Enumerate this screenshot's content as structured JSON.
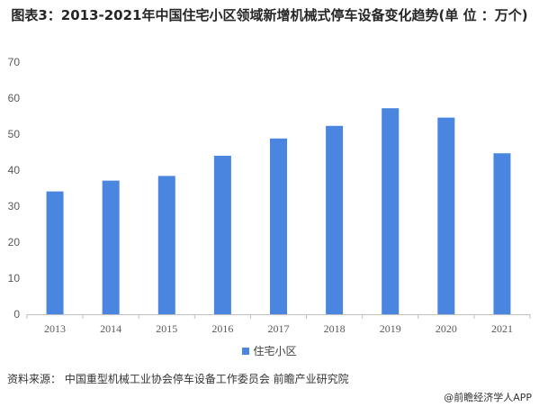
{
  "chart_data": {
    "type": "bar",
    "title": "图表3：2013-2021年中国住宅小区领域新增机械式停车设备变化趋势(单 位 ：万个)",
    "categories": [
      "2013",
      "2014",
      "2015",
      "2016",
      "2017",
      "2018",
      "2019",
      "2020",
      "2021"
    ],
    "series": [
      {
        "name": "住宅小区",
        "values": [
          34.1,
          37.1,
          38.4,
          44.0,
          48.8,
          52.3,
          57.2,
          54.6,
          44.7
        ]
      }
    ],
    "xlabel": "",
    "ylabel": "",
    "ylim": [
      0,
      70
    ],
    "yticks": [
      0,
      10,
      20,
      30,
      40,
      50,
      60,
      70
    ],
    "grid": false,
    "legend": "bottom",
    "bar_color": "#4a86e0"
  },
  "footer": {
    "source": "资料来源：  中国重型机械工业协会停车设备工作委员会 前瞻产业研究院",
    "brand": "@前瞻经济学人APP"
  }
}
